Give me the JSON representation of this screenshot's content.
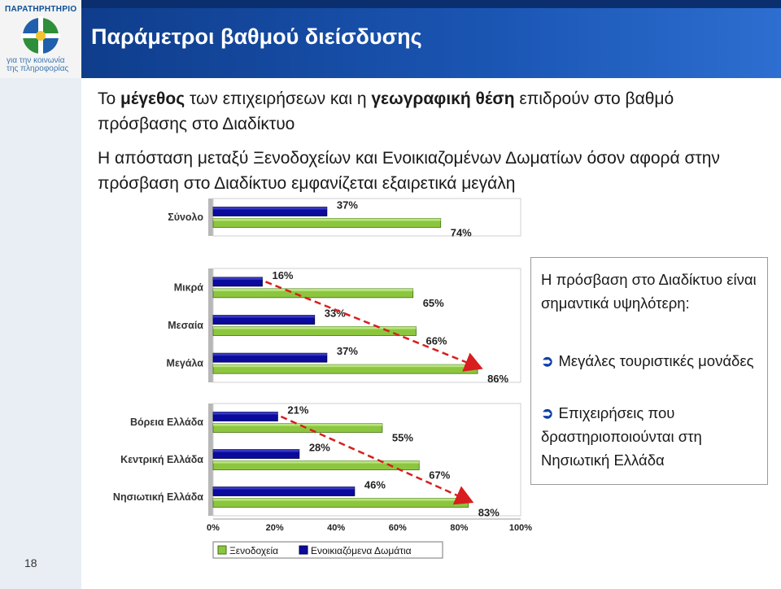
{
  "logo": {
    "name": "ΠΑΡΑΤΗΡΗΤΗΡΙΟ",
    "tagline_1": "για την κοινωνία",
    "tagline_2": "της πληροφορίας"
  },
  "slide": {
    "title": "Παράμετροι βαθμού διείσδυσης",
    "bullet_1": {
      "prefix": "Το ",
      "bold_1": "μέγεθος",
      "middle": " των επιχειρήσεων και η ",
      "bold_2": "γεωγραφική θέση",
      "suffix": " επιδρούν στο βαθμό πρόσβασης στο Διαδίκτυο"
    },
    "bullet_2": "Η απόσταση μεταξύ Ξενοδοχείων και Ενοικιαζομένων Δωματίων όσον αφορά στην πρόσβαση στο Διαδίκτυο εμφανίζεται εξαιρετικά μεγάλη",
    "page_number": "18"
  },
  "note": {
    "intro": "Η πρόσβαση στο Διαδίκτυο είναι σημαντικά υψηλότερη:",
    "items": [
      "Μεγάλες τουριστικές μονάδες",
      "Επιχειρήσεις που δραστηριοποιούνται στη Νησιωτική Ελλάδα"
    ]
  },
  "chart_data": {
    "type": "bar",
    "orientation": "horizontal",
    "categories": [
      "Σύνολο",
      "Μικρά",
      "Μεσαία",
      "Μεγάλα",
      "Βόρεια Ελλάδα",
      "Κεντρική Ελλάδα",
      "Νησιωτική Ελλάδα"
    ],
    "groups": [
      [
        "Σύνολο"
      ],
      [
        "Μικρά",
        "Μεσαία",
        "Μεγάλα"
      ],
      [
        "Βόρεια Ελλάδα",
        "Κεντρική Ελλάδα",
        "Νησιωτική Ελλάδα"
      ]
    ],
    "series": [
      {
        "name": "Ξενοδοχεία",
        "values": [
          74,
          65,
          66,
          86,
          55,
          67,
          83
        ],
        "color": "#8cc63f"
      },
      {
        "name": "Ενοικιαζόμενα Δωμάτια",
        "values": [
          37,
          16,
          33,
          37,
          21,
          28,
          46
        ],
        "color": "#0a0a9c"
      }
    ],
    "value_format": "{v}%",
    "xlim": [
      0,
      100
    ],
    "xticks": [
      "0%",
      "20%",
      "40%",
      "60%",
      "80%",
      "100%"
    ],
    "legend_position": "bottom",
    "annotations": "red dashed arrows from the Μικρά to the Μεγάλα Ξενοδοχεία bar and from the Βόρεια Ελλάδα to the Νησιωτική Ελλάδα Ξενοδοχεία bar"
  }
}
